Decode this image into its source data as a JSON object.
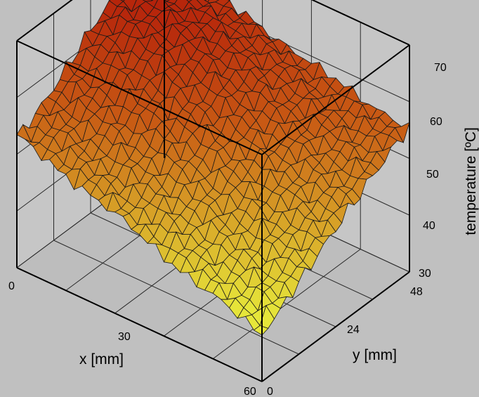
{
  "chart_data": {
    "type": "surface",
    "title": "",
    "xlabel": "x [mm]",
    "ylabel": "y [mm]",
    "zlabel": "temperature [ºC]",
    "xlim": [
      0,
      60
    ],
    "ylim": [
      0,
      48
    ],
    "zlim": [
      30,
      70
    ],
    "x_ticks": [
      "0",
      "30",
      "60"
    ],
    "y_ticks": [
      "0",
      "24",
      "48"
    ],
    "z_ticks": [
      "30",
      "40",
      "50",
      "60",
      "70"
    ],
    "grid": true,
    "colormap": [
      "#e6e63a",
      "#c85a14",
      "#b41e0a"
    ],
    "grid_resolution": [
      31,
      25
    ],
    "surface_model": {
      "peak": 65,
      "peak_at": {
        "x": 8,
        "y": 34
      },
      "corners": {
        "x0_y0": 52,
        "x0_y48": 55,
        "x60_y0": 38,
        "x60_y48": 55
      }
    }
  }
}
